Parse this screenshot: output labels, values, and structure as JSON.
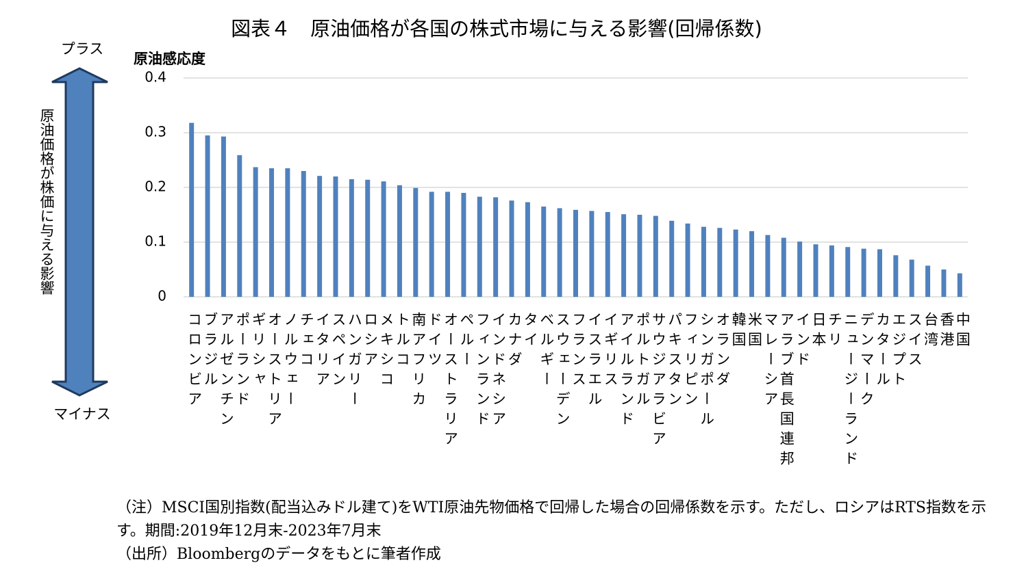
{
  "chart_data": {
    "type": "bar",
    "title": "図表４　原油価格が各国の株式市場に与える影響(回帰係数)",
    "y_axis_label": "原油感応度",
    "arrow_top_label": "プラス",
    "arrow_bottom_label": "マイナス",
    "arrow_label": "原油価格が株価に与える影響",
    "categories": [
      "コロンビア",
      "ブラジル",
      "アルゼンチン",
      "ポーランド",
      "ギリシャ",
      "オーストリア",
      "ノルウェー",
      "チェコ",
      "イタリア",
      "スペイン",
      "ハンガリー",
      "ロシア",
      "メキシコ",
      "トルコ",
      "南アフリカ",
      "ドイツ",
      "オーストラリア",
      "ペルー",
      "フィンランド",
      "インドネシア",
      "カナダ",
      "タイ",
      "ベルギー",
      "スウェーデン",
      "フランス",
      "イスラエル",
      "イギリス",
      "アイルランド",
      "ポルトガル",
      "サウジアラビア",
      "パキスタン",
      "フィリピン",
      "シンガポール",
      "オランダ",
      "韓国",
      "米国",
      "マレーシア",
      "アラブ首長国連邦",
      "インド",
      "日本",
      "チリ",
      "ニュージーランド",
      "デンマーク",
      "カタール",
      "エジプト",
      "スイス",
      "台湾",
      "香港",
      "中国"
    ],
    "values": [
      0.318,
      0.295,
      0.293,
      0.259,
      0.237,
      0.235,
      0.235,
      0.23,
      0.221,
      0.22,
      0.215,
      0.214,
      0.211,
      0.204,
      0.199,
      0.192,
      0.192,
      0.19,
      0.183,
      0.182,
      0.176,
      0.173,
      0.165,
      0.162,
      0.159,
      0.157,
      0.155,
      0.151,
      0.15,
      0.148,
      0.139,
      0.134,
      0.128,
      0.126,
      0.123,
      0.12,
      0.113,
      0.108,
      0.101,
      0.096,
      0.094,
      0.091,
      0.088,
      0.087,
      0.076,
      0.068,
      0.057,
      0.05,
      0.043
    ],
    "color": "#4f81bd",
    "ylim": [
      0,
      0.4
    ],
    "yticks": [
      0,
      0.1,
      0.2,
      0.3,
      0.4
    ],
    "grid": true,
    "notes": [
      "（注）MSCI国別指数(配当込みドル建て)をWTI原油先物価格で回帰した場合の回帰係数を示す。ただし、ロシアはRTS指数を示す。期間:2019年12月末-2023年7月末",
      "（出所）Bloombergのデータをもとに筆者作成"
    ]
  }
}
